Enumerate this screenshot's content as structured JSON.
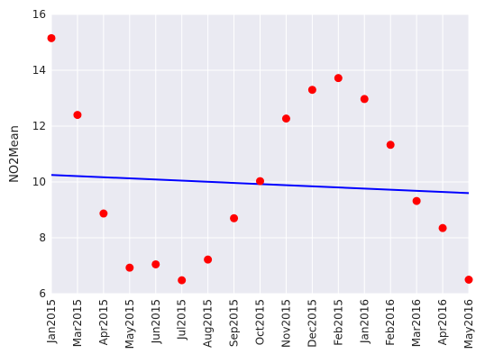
{
  "chart_data": {
    "type": "scatter",
    "title": "",
    "xlabel": "",
    "ylabel": "NO2Mean",
    "ylim": [
      6,
      16
    ],
    "yticks": [
      6,
      8,
      10,
      12,
      14,
      16
    ],
    "grid": true,
    "categories": [
      "Jan2015",
      "Mar2015",
      "Apr2015",
      "May2015",
      "Jun2015",
      "Jul2015",
      "Aug2015",
      "Sep2015",
      "Oct2015",
      "Nov2015",
      "Dec2015",
      "Feb2015",
      "Jan2016",
      "Feb2016",
      "Mar2016",
      "Apr2016",
      "May2016"
    ],
    "series": [
      {
        "values": [
          15.15,
          12.4,
          8.87,
          6.93,
          7.05,
          6.48,
          7.22,
          8.7,
          10.03,
          12.27,
          13.3,
          13.72,
          12.97,
          11.33,
          9.32,
          8.35,
          6.5
        ],
        "color": "#ff0000",
        "marker": "circle"
      }
    ],
    "trendline": {
      "start": 10.25,
      "end": 9.6,
      "color": "#0000ff"
    },
    "colors": {
      "background": "#eaeaf2",
      "grid": "#ffffff"
    }
  }
}
